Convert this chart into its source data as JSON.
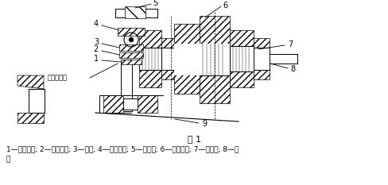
{
  "title": "图 1",
  "caption_line1": "1—联接螺钉; 2—雷锤压盖; 3—雷锤; 4—联接螺栓; 5—梅花架; 6—主轴压板; 7—铲刀架; 8—主",
  "caption_line2": "轴",
  "bg_color": "#ffffff",
  "text_color": "#000000",
  "fig_width": 4.89,
  "fig_height": 2.33,
  "dpi": 100,
  "label_失效螺纹孔": "失效螺纹孔"
}
